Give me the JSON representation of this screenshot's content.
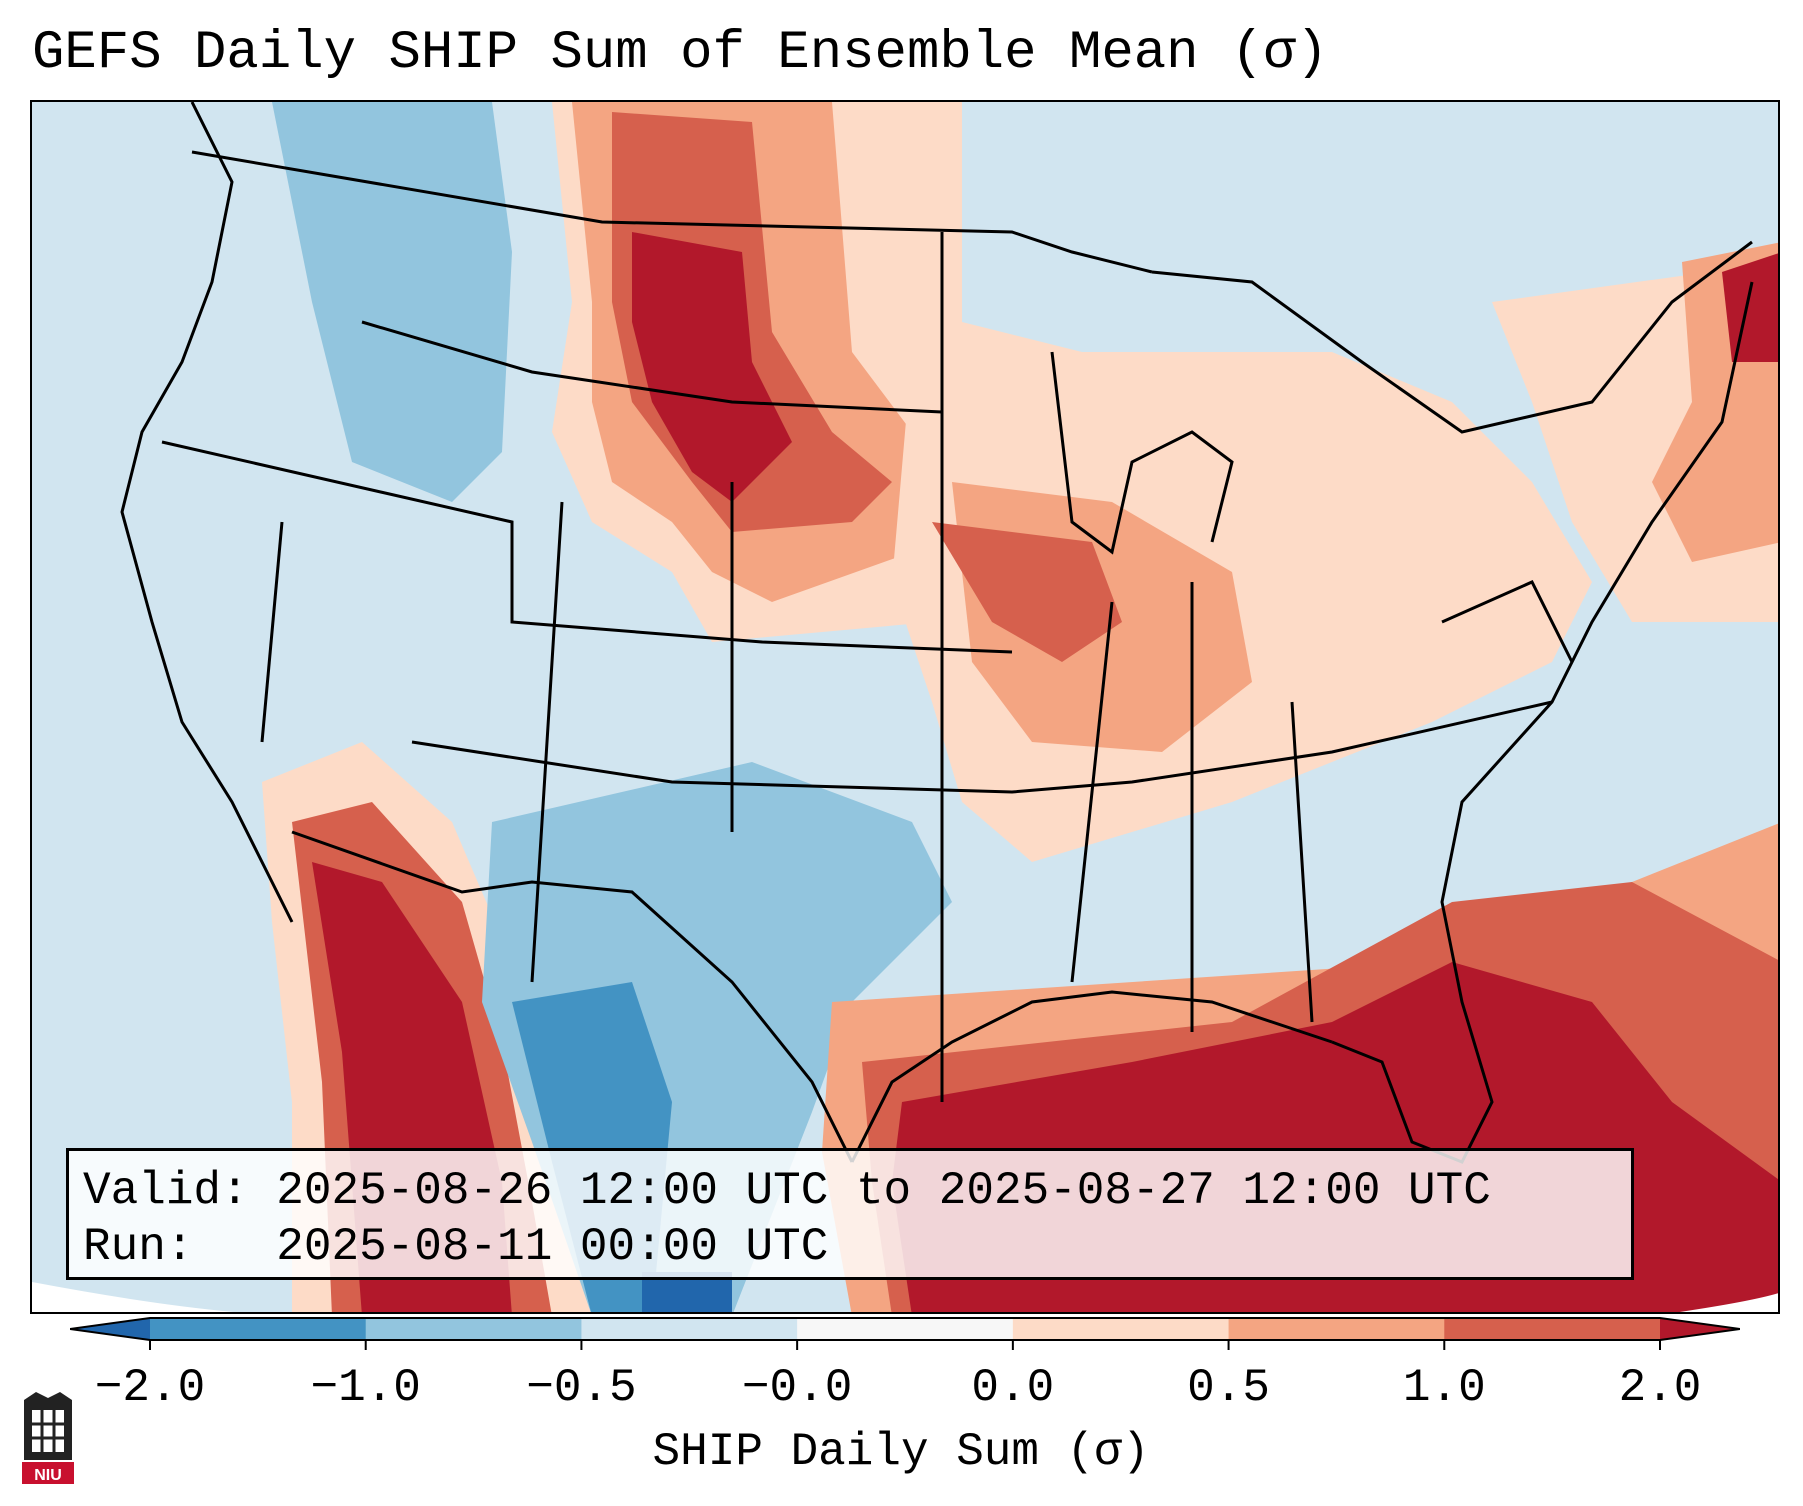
{
  "title": "GEFS Daily SHIP Sum of Ensemble Mean (σ)",
  "info": {
    "valid_label": "Valid:",
    "valid_value": "2025-08-26 12:00 UTC to 2025-08-27 12:00 UTC",
    "run_label": "Run:",
    "run_value": "2025-08-11 00:00 UTC"
  },
  "colorbar": {
    "label": "SHIP Daily Sum (σ)",
    "ticks": [
      "−2.0",
      "−1.0",
      "−0.5",
      "−0.0",
      "0.0",
      "0.5",
      "1.0",
      "2.0"
    ],
    "bins": [
      {
        "range": "< −2.0",
        "color": "#2166ac"
      },
      {
        "range": "−2.0 to −1.0",
        "color": "#4393c3"
      },
      {
        "range": "−1.0 to −0.5",
        "color": "#92c5de"
      },
      {
        "range": "−0.5 to −0.0",
        "color": "#d1e5f0"
      },
      {
        "range": "−0.0 to 0.0",
        "color": "#f7f7f7"
      },
      {
        "range": "0.0 to 0.5",
        "color": "#fddbc7"
      },
      {
        "range": "0.5 to 1.0",
        "color": "#f4a582"
      },
      {
        "range": "1.0 to 2.0",
        "color": "#d6604d"
      },
      {
        "range": "> 2.0",
        "color": "#b2182b"
      }
    ]
  },
  "map": {
    "region": "Contiguous United States",
    "ocean_color": "#d1e5f0",
    "border_color": "#000000"
  },
  "logo": {
    "text": "NIU",
    "color": "#c8102e"
  }
}
